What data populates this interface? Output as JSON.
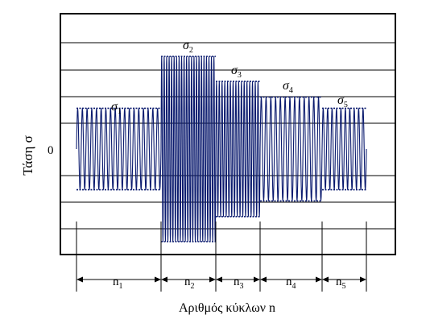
{
  "diagram": {
    "y_axis_label": "Τάση σ",
    "zero_label": "0",
    "x_axis_label": "Αριθμός κύκλων n",
    "blocks": [
      {
        "stress_symbol": "σ",
        "stress_sub": "1",
        "count_symbol": "n",
        "count_sub": "1",
        "cycles": 18,
        "amplitude": 0.44
      },
      {
        "stress_symbol": "σ",
        "stress_sub": "2",
        "count_symbol": "n",
        "count_sub": "2",
        "cycles": 22,
        "amplitude": 1.0
      },
      {
        "stress_symbol": "σ",
        "stress_sub": "3",
        "count_symbol": "n",
        "count_sub": "3",
        "cycles": 16,
        "amplitude": 0.73
      },
      {
        "stress_symbol": "σ",
        "stress_sub": "4",
        "count_symbol": "n",
        "count_sub": "4",
        "cycles": 13,
        "amplitude": 0.56
      },
      {
        "stress_symbol": "σ",
        "stress_sub": "5",
        "count_symbol": "n",
        "count_sub": "5",
        "cycles": 10,
        "amplitude": 0.44
      }
    ],
    "colors": {
      "signal": "#0a1a6e",
      "frame": "#000000",
      "grid": "#000000"
    }
  }
}
